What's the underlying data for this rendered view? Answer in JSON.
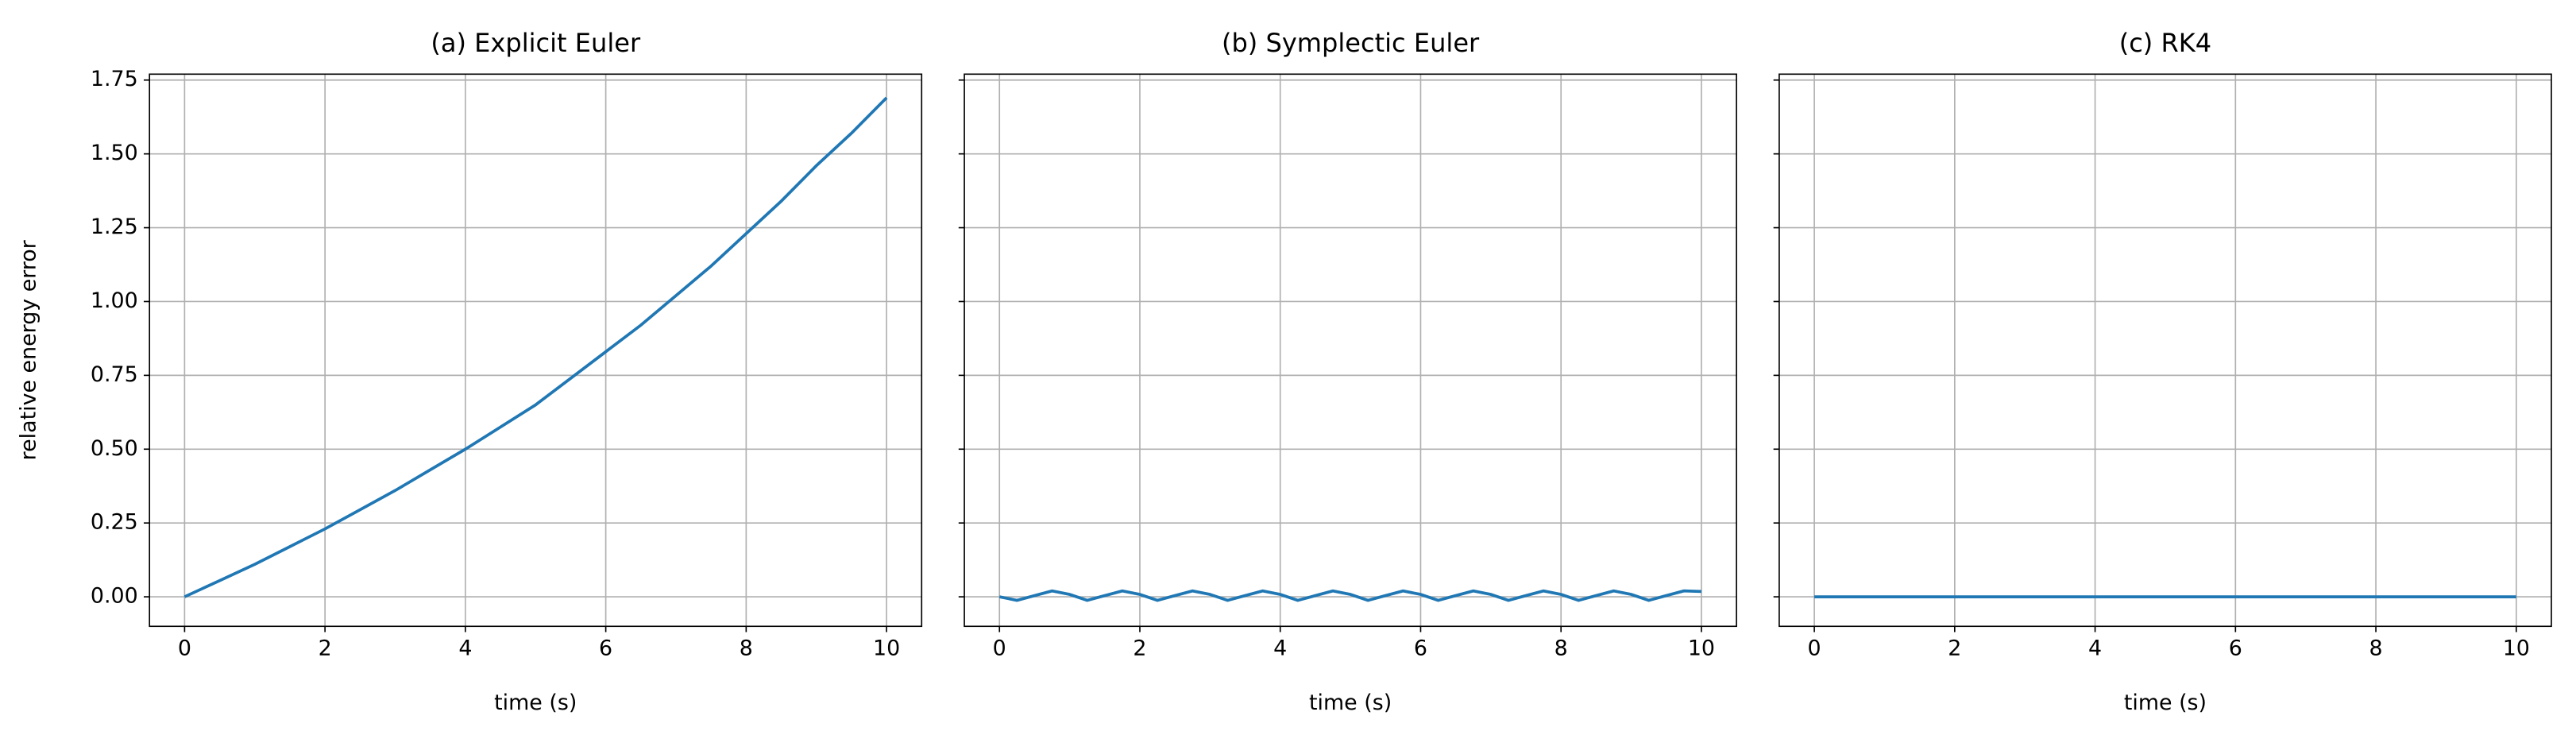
{
  "chart_data": [
    {
      "type": "line",
      "title": "(a) Explicit Euler",
      "x_label": "time (s)",
      "y_label": "relative energy error",
      "xlim": [
        -0.5,
        10.5
      ],
      "ylim": [
        -0.1,
        1.77
      ],
      "xticks": [
        0,
        2,
        4,
        6,
        8,
        10
      ],
      "yticks": [
        {
          "value": 0,
          "label": "0.00"
        },
        {
          "value": 0.25,
          "label": "0.25"
        },
        {
          "value": 0.5,
          "label": "0.50"
        },
        {
          "value": 0.75,
          "label": "0.75"
        },
        {
          "value": 1,
          "label": "1.00"
        },
        {
          "value": 1.25,
          "label": "1.25"
        },
        {
          "value": 1.5,
          "label": "1.50"
        },
        {
          "value": 1.75,
          "label": "1.75"
        }
      ],
      "ytick_labels": true,
      "grid": true,
      "x": [
        0,
        0.5,
        1,
        1.5,
        2,
        2.5,
        3,
        3.5,
        4,
        4.5,
        5,
        5.5,
        6,
        6.5,
        7,
        7.5,
        8,
        8.5,
        9,
        9.5,
        10
      ],
      "series": [
        {
          "color": "#1f77b4",
          "values": [
            0,
            0.055,
            0.11,
            0.17,
            0.23,
            0.295,
            0.36,
            0.43,
            0.5,
            0.575,
            0.65,
            0.74,
            0.83,
            0.92,
            1.02,
            1.12,
            1.23,
            1.34,
            1.46,
            1.57,
            1.69
          ]
        }
      ]
    },
    {
      "type": "line",
      "title": "(b) Symplectic Euler",
      "x_label": "time (s)",
      "xlim": [
        -0.5,
        10.5
      ],
      "ylim": [
        -0.1,
        1.77
      ],
      "xticks": [
        0,
        2,
        4,
        6,
        8,
        10
      ],
      "yticks": [
        0,
        0.25,
        0.5,
        0.75,
        1,
        1.25,
        1.5,
        1.75
      ],
      "ytick_labels": false,
      "grid": true,
      "x": [
        0,
        0.25,
        0.5,
        0.75,
        1,
        1.25,
        1.5,
        1.75,
        2,
        2.25,
        2.5,
        2.75,
        3,
        3.25,
        3.5,
        3.75,
        4,
        4.25,
        4.5,
        4.75,
        5,
        5.25,
        5.5,
        5.75,
        6,
        6.25,
        6.5,
        6.75,
        7,
        7.25,
        7.5,
        7.75,
        8,
        8.25,
        8.5,
        8.75,
        9,
        9.25,
        9.5,
        9.75,
        10
      ],
      "series": [
        {
          "color": "#1f77b4",
          "values": [
            0,
            -0.012,
            0.004,
            0.02,
            0.008,
            -0.012,
            0.004,
            0.02,
            0.008,
            -0.012,
            0.004,
            0.02,
            0.008,
            -0.012,
            0.004,
            0.02,
            0.008,
            -0.012,
            0.004,
            0.02,
            0.008,
            -0.012,
            0.004,
            0.02,
            0.008,
            -0.012,
            0.004,
            0.02,
            0.008,
            -0.012,
            0.004,
            0.02,
            0.008,
            -0.012,
            0.004,
            0.02,
            0.008,
            -0.012,
            0.004,
            0.02,
            0.018
          ]
        }
      ]
    },
    {
      "type": "line",
      "title": "(c) RK4",
      "x_label": "time (s)",
      "xlim": [
        -0.5,
        10.5
      ],
      "ylim": [
        -0.1,
        1.77
      ],
      "xticks": [
        0,
        2,
        4,
        6,
        8,
        10
      ],
      "yticks": [
        0,
        0.25,
        0.5,
        0.75,
        1,
        1.25,
        1.5,
        1.75
      ],
      "ytick_labels": false,
      "grid": true,
      "x": [
        0,
        10
      ],
      "series": [
        {
          "color": "#1f77b4",
          "values": [
            0,
            0
          ]
        }
      ]
    }
  ]
}
